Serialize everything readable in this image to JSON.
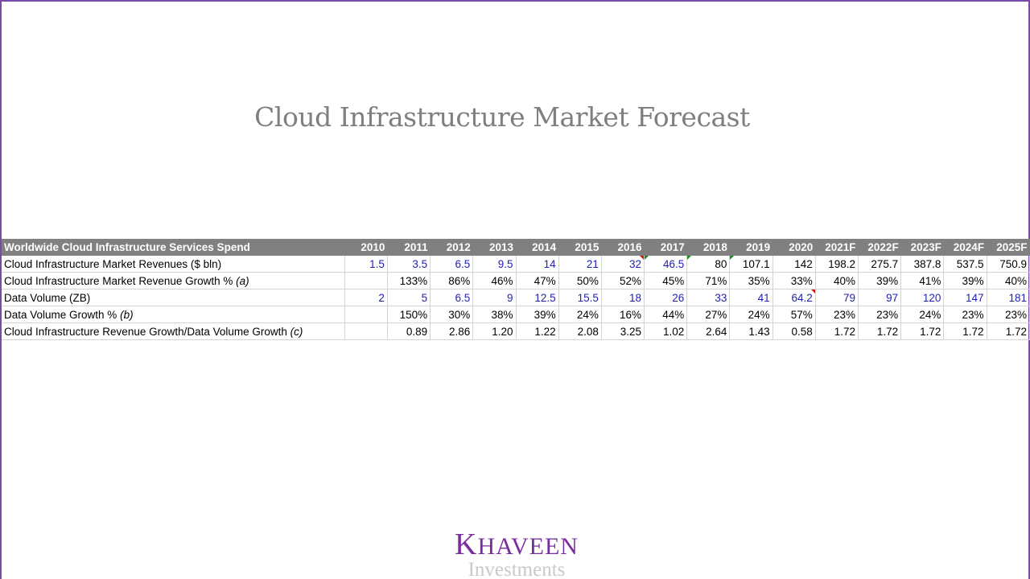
{
  "slide": {
    "title": "Cloud Infrastructure Market Forecast"
  },
  "table": {
    "header_label": "Worldwide Cloud Infrastructure Services Spend",
    "years": [
      "2010",
      "2011",
      "2012",
      "2013",
      "2014",
      "2015",
      "2016",
      "2017",
      "2018",
      "2019",
      "2020",
      "2021F",
      "2022F",
      "2023F",
      "2024F",
      "2025F"
    ],
    "rows": [
      {
        "label": "Cloud Infrastructure Market Revenues ($ bln)",
        "label_note": "",
        "values": [
          "1.5",
          "3.5",
          "6.5",
          "9.5",
          "14",
          "21",
          "32",
          "46.5",
          "80",
          "107.1",
          "142",
          "198.2",
          "275.7",
          "387.8",
          "537.5",
          "750.9"
        ],
        "blue_cells": [
          0,
          1,
          2,
          3,
          4,
          5,
          6,
          7
        ]
      },
      {
        "label": "Cloud Infrastructure Market Revenue Growth % ",
        "label_note": "(a)",
        "values": [
          "",
          "133%",
          "86%",
          "46%",
          "47%",
          "50%",
          "52%",
          "45%",
          "71%",
          "35%",
          "33%",
          "40%",
          "39%",
          "41%",
          "39%",
          "40%"
        ],
        "blue_cells": []
      },
      {
        "label": "Data Volume (ZB)",
        "label_note": "",
        "values": [
          "2",
          "5",
          "6.5",
          "9",
          "12.5",
          "15.5",
          "18",
          "26",
          "33",
          "41",
          "64.2",
          "79",
          "97",
          "120",
          "147",
          "181"
        ],
        "blue_cells": [
          0,
          1,
          2,
          3,
          4,
          5,
          6,
          7,
          8,
          9,
          10,
          11,
          12,
          13,
          14,
          15
        ]
      },
      {
        "label": "Data Volume Growth % ",
        "label_note": "(b)",
        "values": [
          "",
          "150%",
          "30%",
          "38%",
          "39%",
          "24%",
          "16%",
          "44%",
          "27%",
          "24%",
          "57%",
          "23%",
          "23%",
          "24%",
          "23%",
          "23%"
        ],
        "blue_cells": []
      },
      {
        "label": "Cloud Infrastructure Revenue Growth/Data Volume Growth ",
        "label_note": "(c)",
        "values": [
          "",
          "0.89",
          "2.86",
          "1.20",
          "1.22",
          "2.08",
          "3.25",
          "1.02",
          "2.64",
          "1.43",
          "0.58",
          "1.72",
          "1.72",
          "1.72",
          "1.72",
          "1.72"
        ],
        "blue_cells": []
      }
    ]
  },
  "logo": {
    "name_cap": "K",
    "name_rest": "HAVEEN",
    "subtitle": "Investments"
  },
  "colors": {
    "header_bg": "#808080",
    "blue_text": "#1f1fb4",
    "brand_purple": "#7a2e9e",
    "border_purple": "#7a4aa8"
  }
}
